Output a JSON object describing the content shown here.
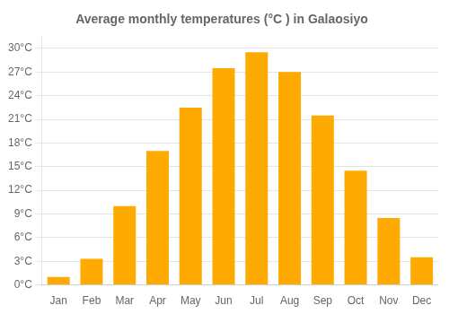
{
  "chart_data": {
    "type": "bar",
    "title": "Average monthly temperatures (°C ) in Galaosiyo",
    "categories": [
      "Jan",
      "Feb",
      "Mar",
      "Apr",
      "May",
      "Jun",
      "Jul",
      "Aug",
      "Sep",
      "Oct",
      "Nov",
      "Dec"
    ],
    "values": [
      1,
      3.3,
      10,
      17,
      22.5,
      27.5,
      29.5,
      27,
      21.5,
      14.5,
      8.5,
      3.5
    ],
    "color": "#FFAA00",
    "ylim": [
      0,
      31.5
    ],
    "yticks": [
      {
        "value": 0,
        "label": "0°C"
      },
      {
        "value": 3,
        "label": "3°C"
      },
      {
        "value": 6,
        "label": "6°C"
      },
      {
        "value": 9,
        "label": "9°C"
      },
      {
        "value": 12,
        "label": "12°C"
      },
      {
        "value": 15,
        "label": "15°C"
      },
      {
        "value": 18,
        "label": "18°C"
      },
      {
        "value": 21,
        "label": "21°C"
      },
      {
        "value": 24,
        "label": "24°C"
      },
      {
        "value": 27,
        "label": "27°C"
      },
      {
        "value": 30,
        "label": "30°C"
      }
    ],
    "grid": true
  }
}
